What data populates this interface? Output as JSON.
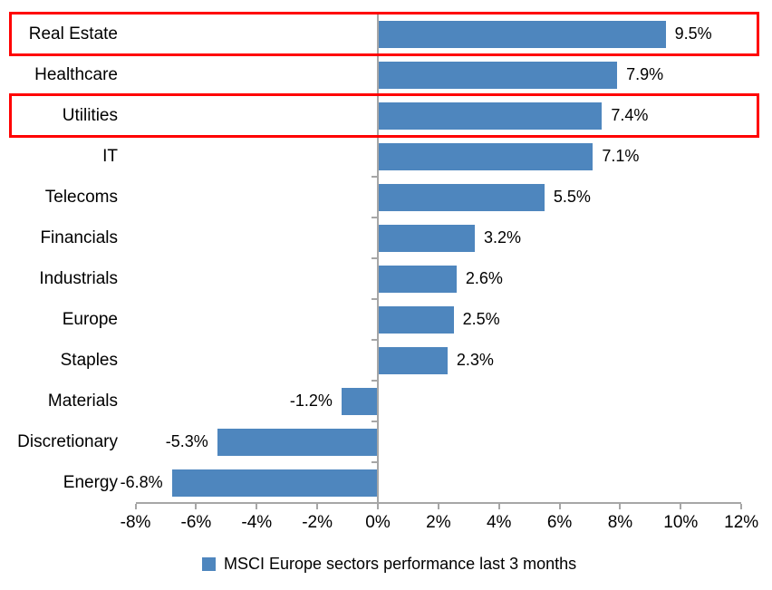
{
  "chart_data": {
    "type": "bar",
    "orientation": "horizontal",
    "title": "",
    "categories": [
      "Real Estate",
      "Healthcare",
      "Utilities",
      "IT",
      "Telecoms",
      "Financials",
      "Industrials",
      "Europe",
      "Staples",
      "Materials",
      "Discretionary",
      "Energy"
    ],
    "values": [
      9.5,
      7.9,
      7.4,
      7.1,
      5.5,
      3.2,
      2.6,
      2.5,
      2.3,
      -1.2,
      -5.3,
      -6.8
    ],
    "value_labels": [
      "9.5%",
      "7.9%",
      "7.4%",
      "7.1%",
      "5.5%",
      "3.2%",
      "2.6%",
      "2.5%",
      "2.3%",
      "-1.2%",
      "-5.3%",
      "-6.8%"
    ],
    "x_tick_values": [
      -8,
      -6,
      -4,
      -2,
      0,
      2,
      4,
      6,
      8,
      10,
      12
    ],
    "x_tick_labels": [
      "-8%",
      "-6%",
      "-4%",
      "-2%",
      "0%",
      "2%",
      "4%",
      "6%",
      "8%",
      "10%",
      "12%"
    ],
    "xlim": [
      -8,
      12
    ],
    "grid": false,
    "legend_position": "bottom-center",
    "legend": "MSCI Europe sectors performance last 3 months",
    "highlighted_categories": [
      "Real Estate",
      "Utilities"
    ],
    "colors": {
      "bar": "#4E86BE",
      "highlight_border": "#FF0000",
      "axis": "#A6A6A6",
      "text": "#000000",
      "background": "#FFFFFF"
    }
  }
}
